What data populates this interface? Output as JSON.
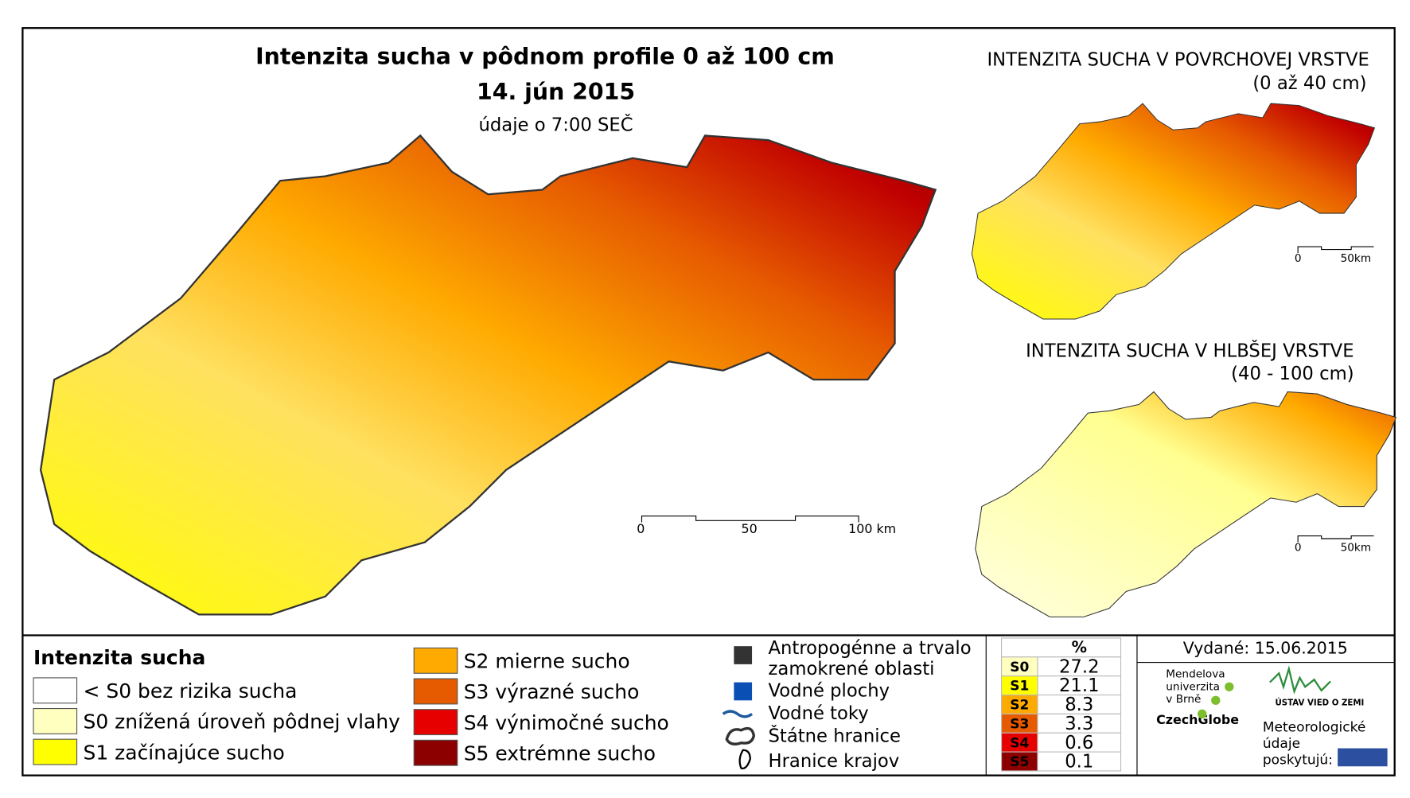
{
  "header": {
    "title": "Intenzita sucha v pôdnom profile 0 až 100 cm",
    "date": "14. jún 2015",
    "note": "údaje o 7:00 SEČ"
  },
  "main_map": {
    "scale": [
      "0",
      "50",
      "100 km"
    ]
  },
  "insets": [
    {
      "title": "INTENZITA SUCHA V POVRCHOVEJ VRSTVE",
      "subtitle": "(0 až 40 cm)",
      "scale": [
        "0",
        "50km"
      ]
    },
    {
      "title": "INTENZITA SUCHA V HLBŠEJ VRSTVE",
      "subtitle": "(40 - 100 cm)",
      "scale": [
        "0",
        "50km"
      ]
    }
  ],
  "legend": {
    "title": "Intenzita sucha",
    "items": [
      {
        "label": "< S0 bez rizika sucha",
        "color": "#ffffff"
      },
      {
        "label": "S0 znížená úroveň pôdnej vlahy",
        "color": "#ffffc0"
      },
      {
        "label": "S1 začínajúce sucho",
        "color": "#ffff00"
      },
      {
        "label": "S2 mierne sucho",
        "color": "#ffaa00"
      },
      {
        "label": "S3 výrazné sucho",
        "color": "#e65a00"
      },
      {
        "label": "S4 výnimočné sucho",
        "color": "#e60000"
      },
      {
        "label": "S5 extrémne sucho",
        "color": "#8c0000"
      }
    ]
  },
  "symbols": [
    {
      "lines": [
        "Antropogénne a trvalo",
        "zamokrené oblasti"
      ]
    },
    {
      "lines": [
        "Vodné plochy"
      ]
    },
    {
      "lines": [
        "Vodné toky"
      ]
    },
    {
      "lines": [
        "Štátne hranice"
      ]
    },
    {
      "lines": [
        "Hranice krajov"
      ]
    }
  ],
  "table": {
    "header": "%",
    "rows": [
      {
        "class": "S0",
        "value": 27.2,
        "color": "#ffffc0"
      },
      {
        "class": "S1",
        "value": 21.1,
        "color": "#ffff00"
      },
      {
        "class": "S2",
        "value": 8.3,
        "color": "#ffaa00"
      },
      {
        "class": "S3",
        "value": 3.3,
        "color": "#e65a00"
      },
      {
        "class": "S4",
        "value": 0.6,
        "color": "#e60000"
      },
      {
        "class": "S5",
        "value": 0.1,
        "color": "#8c0000"
      }
    ]
  },
  "issued": "Vydané: 15.06.2015",
  "logos": {
    "university": [
      "Mendelova",
      "univerzita",
      "v Brně"
    ],
    "czechglobe": "CzechGlobe",
    "institute": "ÚSTAV VIED O ZEMI",
    "provider": [
      "Meteorologické",
      "údaje",
      "poskytujú:"
    ]
  }
}
